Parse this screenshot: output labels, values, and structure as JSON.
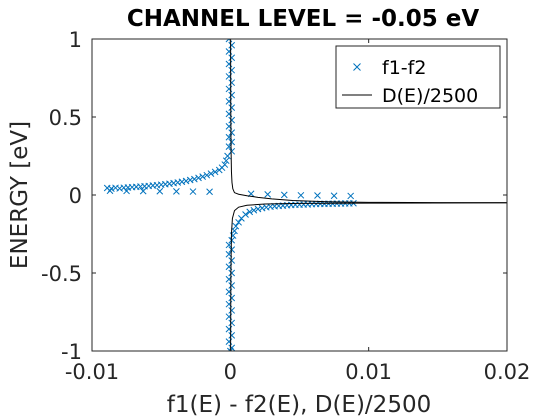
{
  "chart_data": {
    "type": "scatter",
    "title": "CHANNEL LEVEL = -0.05 eV",
    "xlabel": "f1(E) - f2(E), D(E)/2500",
    "ylabel": "ENERGY  [eV]",
    "xlim": [
      -0.01,
      0.02
    ],
    "ylim": [
      -1,
      1
    ],
    "x_ticks": [
      -0.01,
      0,
      0.01,
      0.02
    ],
    "x_tick_labels": [
      "-0.01",
      "0",
      "0.01",
      "0.02"
    ],
    "y_ticks": [
      -1,
      -0.5,
      0,
      0.5,
      1
    ],
    "y_tick_labels": [
      "-1",
      "-0.5",
      "0",
      "0.5",
      "1"
    ],
    "grid": false,
    "legend_position": "top-right",
    "colors": {
      "f1_f2": "#0072bd",
      "dos": "#000000",
      "axes": "#262626"
    },
    "series": [
      {
        "name": "f1-f2",
        "marker": "x",
        "points": [
          [
            -0.0089,
            0.045
          ],
          [
            -0.0086,
            0.041
          ],
          [
            -0.0083,
            0.046
          ],
          [
            -0.008,
            0.042
          ],
          [
            -0.0077,
            0.047
          ],
          [
            -0.0074,
            0.048
          ],
          [
            -0.0071,
            0.05
          ],
          [
            -0.0068,
            0.052
          ],
          [
            -0.0065,
            0.054
          ],
          [
            -0.0062,
            0.056
          ],
          [
            -0.0059,
            0.058
          ],
          [
            -0.0056,
            0.061
          ],
          [
            -0.0053,
            0.063
          ],
          [
            -0.005,
            0.066
          ],
          [
            -0.0047,
            0.069
          ],
          [
            -0.0044,
            0.072
          ],
          [
            -0.0041,
            0.076
          ],
          [
            -0.0038,
            0.08
          ],
          [
            -0.0035,
            0.085
          ],
          [
            -0.0032,
            0.09
          ],
          [
            -0.0029,
            0.096
          ],
          [
            -0.0026,
            0.102
          ],
          [
            -0.0023,
            0.11
          ],
          [
            -0.002,
            0.118
          ],
          [
            -0.0017,
            0.127
          ],
          [
            -0.0014,
            0.137
          ],
          [
            -0.0011,
            0.148
          ],
          [
            -0.0008,
            0.16
          ],
          [
            -0.0006,
            0.175
          ],
          [
            -0.0004,
            0.195
          ],
          [
            -0.0087,
            0.027
          ],
          [
            -0.0075,
            0.026
          ],
          [
            -0.0063,
            0.025
          ],
          [
            -0.0051,
            0.024
          ],
          [
            -0.0039,
            0.023
          ],
          [
            -0.0027,
            0.022
          ],
          [
            -0.0015,
            0.021
          ],
          [
            0.0015,
            0.008
          ],
          [
            0.0027,
            0.004
          ],
          [
            0.0039,
            0.001
          ],
          [
            0.0051,
            -0.002
          ],
          [
            0.0063,
            -0.003
          ],
          [
            0.0075,
            -0.005
          ],
          [
            0.0087,
            -0.006
          ],
          [
            0.0004,
            -0.2
          ],
          [
            0.0006,
            -0.175
          ],
          [
            0.0008,
            -0.15
          ],
          [
            0.0011,
            -0.125
          ],
          [
            0.0014,
            -0.108
          ],
          [
            0.0017,
            -0.098
          ],
          [
            0.002,
            -0.09
          ],
          [
            0.0023,
            -0.084
          ],
          [
            0.0026,
            -0.079
          ],
          [
            0.0029,
            -0.075
          ],
          [
            0.0032,
            -0.072
          ],
          [
            0.0035,
            -0.07
          ],
          [
            0.0038,
            -0.068
          ],
          [
            0.0041,
            -0.066
          ],
          [
            0.0044,
            -0.064
          ],
          [
            0.0047,
            -0.063
          ],
          [
            0.005,
            -0.062
          ],
          [
            0.0053,
            -0.061
          ],
          [
            0.0056,
            -0.06
          ],
          [
            0.0059,
            -0.059
          ],
          [
            0.0062,
            -0.058
          ],
          [
            0.0065,
            -0.057
          ],
          [
            0.0068,
            -0.057
          ],
          [
            0.0071,
            -0.056
          ],
          [
            0.0074,
            -0.056
          ],
          [
            0.0077,
            -0.055
          ],
          [
            0.008,
            -0.055
          ],
          [
            0.0083,
            -0.054
          ],
          [
            0.0086,
            -0.054
          ],
          [
            0.0089,
            -0.053
          ],
          [
            -0.0001,
            1.0
          ],
          [
            0.0001,
            0.96
          ],
          [
            -0.0001,
            0.92
          ],
          [
            0.0001,
            0.88
          ],
          [
            -0.0001,
            0.84
          ],
          [
            0.0001,
            0.8
          ],
          [
            -0.0001,
            0.76
          ],
          [
            0.0001,
            0.72
          ],
          [
            -0.0001,
            0.68
          ],
          [
            0.0001,
            0.64
          ],
          [
            -0.0001,
            0.6
          ],
          [
            0.0001,
            0.56
          ],
          [
            -0.0001,
            0.52
          ],
          [
            0.0001,
            0.48
          ],
          [
            -0.0001,
            0.44
          ],
          [
            0.0001,
            0.4
          ],
          [
            -0.0001,
            0.37
          ],
          [
            0.0001,
            0.34
          ],
          [
            -0.0001,
            0.31
          ],
          [
            0.0001,
            0.28
          ],
          [
            -0.0002,
            0.25
          ],
          [
            -0.0003,
            0.22
          ],
          [
            0.0003,
            -0.23
          ],
          [
            0.0002,
            -0.26
          ],
          [
            0.0001,
            -0.29
          ],
          [
            -0.0001,
            -0.32
          ],
          [
            0.0001,
            -0.35
          ],
          [
            -0.0001,
            -0.38
          ],
          [
            0.0001,
            -0.42
          ],
          [
            -0.0001,
            -0.46
          ],
          [
            0.0001,
            -0.5
          ],
          [
            -0.0001,
            -0.54
          ],
          [
            0.0001,
            -0.58
          ],
          [
            -0.0001,
            -0.62
          ],
          [
            0.0001,
            -0.66
          ],
          [
            -0.0001,
            -0.7
          ],
          [
            0.0001,
            -0.74
          ],
          [
            -0.0001,
            -0.78
          ],
          [
            0.0001,
            -0.82
          ],
          [
            -0.0001,
            -0.86
          ],
          [
            0.0001,
            -0.9
          ],
          [
            -0.0001,
            -0.94
          ],
          [
            0.0001,
            -0.98
          ],
          [
            0.0,
            -1.0
          ]
        ]
      },
      {
        "name": "D(E)/2500",
        "line": "solid",
        "points": [
          [
            2e-05,
            1.0
          ],
          [
            3e-05,
            0.6
          ],
          [
            5e-05,
            0.3
          ],
          [
            8e-05,
            0.15
          ],
          [
            0.00012,
            0.08
          ],
          [
            0.00018,
            0.04
          ],
          [
            0.0003,
            0.015
          ],
          [
            0.0006,
            0.005
          ],
          [
            0.0012,
            -0.005
          ],
          [
            0.002,
            -0.015
          ],
          [
            0.003,
            -0.025
          ],
          [
            0.0045,
            -0.035
          ],
          [
            0.007,
            -0.043
          ],
          [
            0.01,
            -0.047
          ],
          [
            0.015,
            -0.049
          ],
          [
            0.02,
            -0.05
          ]
        ],
        "points_lower": [
          [
            2e-05,
            -1.0
          ],
          [
            4e-05,
            -0.5
          ],
          [
            8e-05,
            -0.25
          ],
          [
            0.00015,
            -0.15
          ],
          [
            0.0003,
            -0.1
          ],
          [
            0.0006,
            -0.078
          ],
          [
            0.0012,
            -0.066
          ],
          [
            0.0025,
            -0.058
          ],
          [
            0.005,
            -0.054
          ],
          [
            0.01,
            -0.052
          ],
          [
            0.015,
            -0.051
          ],
          [
            0.02,
            -0.05
          ]
        ]
      }
    ]
  }
}
